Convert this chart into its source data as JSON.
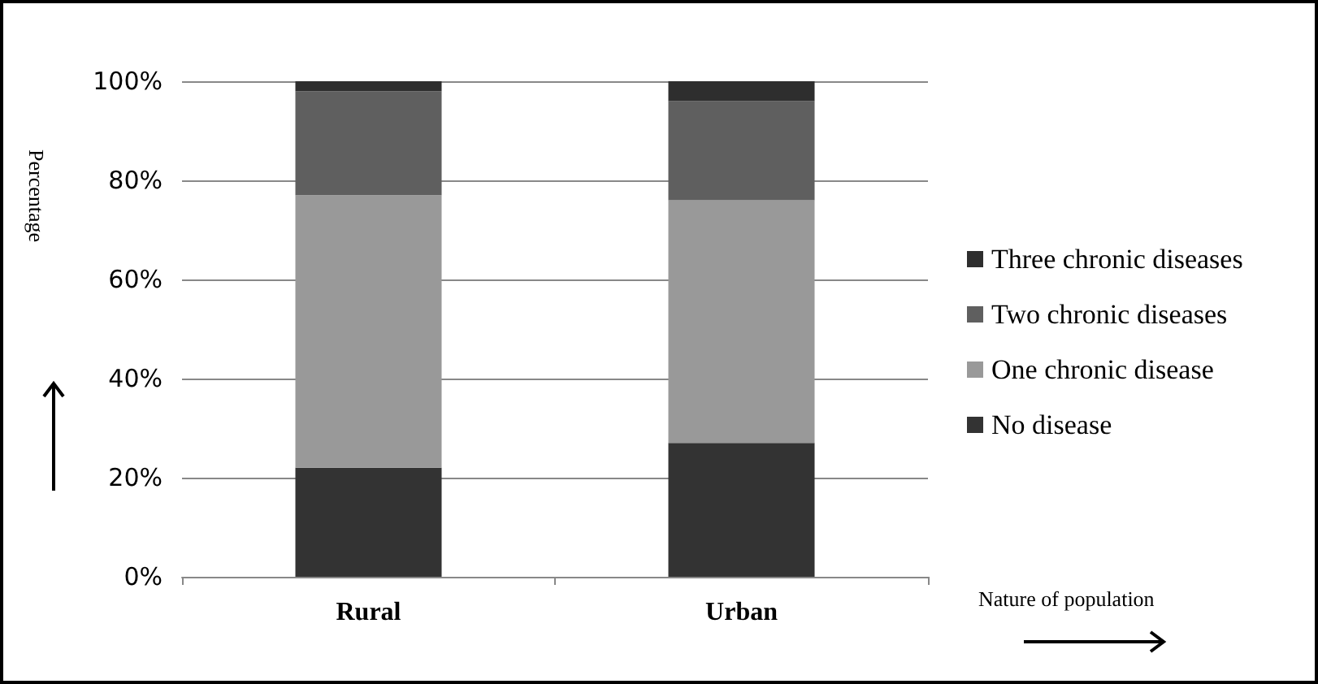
{
  "chart_data": {
    "type": "bar",
    "stacked": true,
    "xlabel": "Nature of population",
    "ylabel": "Percentage",
    "categories": [
      "Rural",
      "Urban"
    ],
    "series": [
      {
        "name": "No disease",
        "color": "#333333",
        "values": [
          22,
          27
        ]
      },
      {
        "name": "One chronic disease",
        "color": "#999999",
        "values": [
          55,
          49
        ]
      },
      {
        "name": "Two chronic diseases",
        "color": "#5f5f5f",
        "values": [
          21,
          20
        ]
      },
      {
        "name": "Three chronic diseases",
        "color": "#2e2e2e",
        "values": [
          2,
          4
        ]
      }
    ],
    "ylim": [
      0,
      100
    ],
    "yticks": [
      {
        "value": 0,
        "label": "0%"
      },
      {
        "value": 20,
        "label": "20%"
      },
      {
        "value": 40,
        "label": "40%"
      },
      {
        "value": 60,
        "label": "60%"
      },
      {
        "value": 80,
        "label": "80%"
      },
      {
        "value": 100,
        "label": "100%"
      }
    ],
    "grid": "y",
    "legend": "right"
  }
}
